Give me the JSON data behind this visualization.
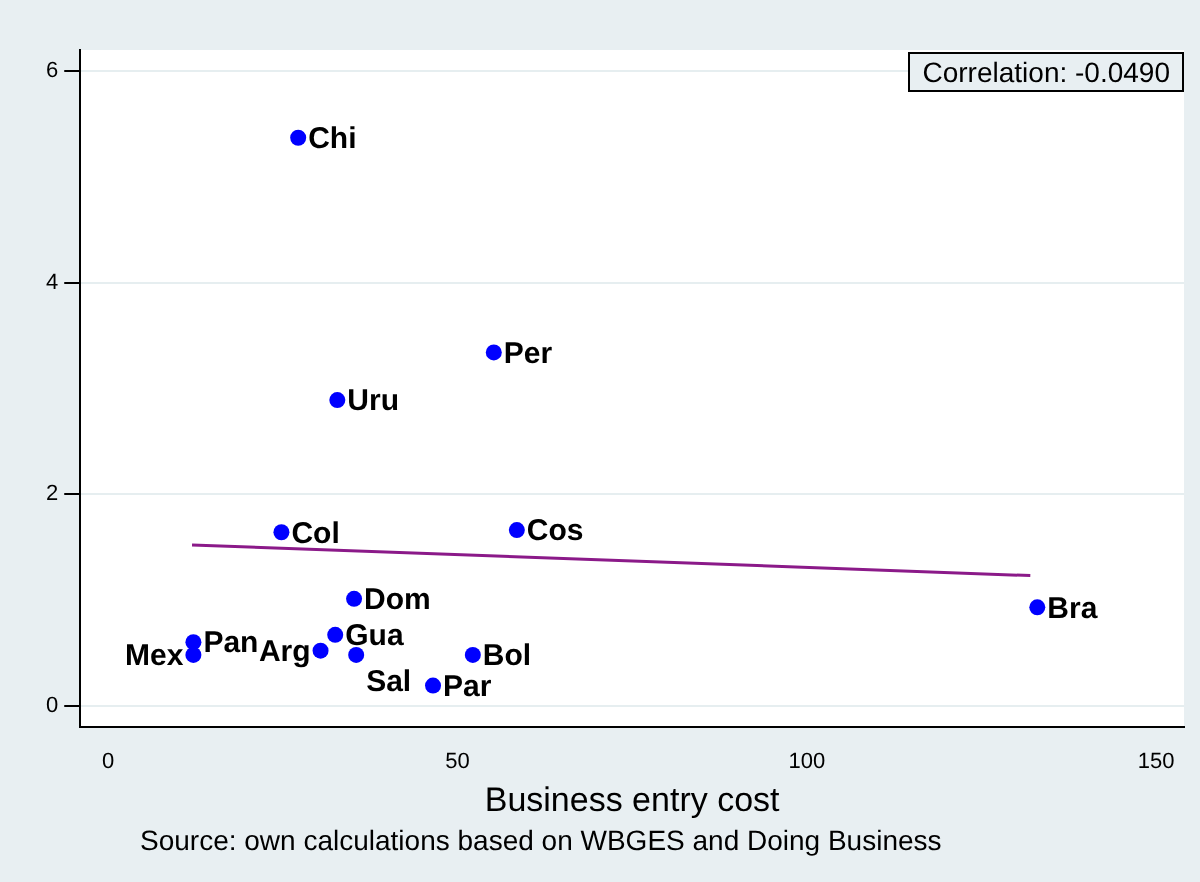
{
  "chart_data": {
    "type": "scatter",
    "xlabel": "Business entry cost",
    "xlim": [
      -4,
      154
    ],
    "ylim": [
      -0.2,
      6.2
    ],
    "xticks": [
      0,
      50,
      100,
      150
    ],
    "yticks": [
      0,
      2,
      4,
      6
    ],
    "grid": "y",
    "legend": false,
    "marker": "circle",
    "annotations": [
      "Correlation: -0.0490",
      "Source: own calculations based on WBGES and Doing Business",
      {
        "text": "Chi",
        "x": 27.2,
        "y": 5.37
      },
      {
        "text": "Per",
        "x": 55.2,
        "y": 3.34
      },
      {
        "text": "Uru",
        "x": 32.8,
        "y": 2.89
      },
      {
        "text": "Col",
        "x": 24.8,
        "y": 1.64
      },
      {
        "text": "Cos",
        "x": 58.5,
        "y": 1.66
      },
      {
        "text": "Bra",
        "x": 133,
        "y": 0.93
      },
      {
        "text": "Dom",
        "x": 35.2,
        "y": 1.01
      },
      {
        "text": "Gua",
        "x": 32.5,
        "y": 0.67
      },
      {
        "text": "Pan",
        "x": 12.2,
        "y": 0.6
      },
      {
        "text": "Mex",
        "x": 12.2,
        "y": 0.48
      },
      {
        "text": "Arg",
        "x": 30.4,
        "y": 0.52
      },
      {
        "text": "Sal",
        "x": 35.5,
        "y": 0.48
      },
      {
        "text": "Bol",
        "x": 52.2,
        "y": 0.48
      },
      {
        "text": "Par",
        "x": 46.5,
        "y": 0.19
      }
    ],
    "series": [
      {
        "color": "#0000ff",
        "x": [
          27.2,
          55.2,
          32.8,
          24.8,
          58.5,
          133,
          35.2,
          32.5,
          12.2,
          12.2,
          30.4,
          35.5,
          52.2,
          46.5
        ],
        "values": [
          5.37,
          3.34,
          2.89,
          1.64,
          1.66,
          0.93,
          1.01,
          0.67,
          0.6,
          0.48,
          0.52,
          0.48,
          0.48,
          0.19
        ]
      },
      {
        "type": "line",
        "color": "#8b1a89",
        "marker": "none",
        "x": [
          12,
          132
        ],
        "values": [
          1.52,
          1.23
        ]
      }
    ]
  }
}
